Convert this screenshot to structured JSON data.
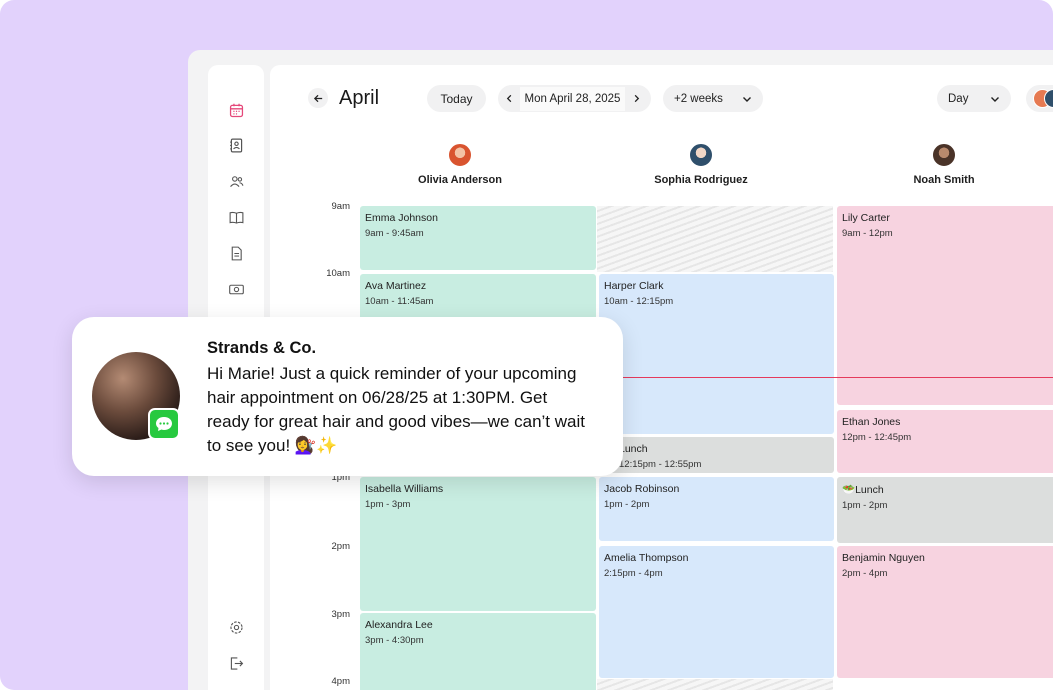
{
  "header": {
    "month": "April",
    "today_label": "Today",
    "date_label": "Mon April 28, 2025",
    "range_label": "+2 weeks",
    "view_label": "Day"
  },
  "sidebar": {
    "icons": [
      "calendar-icon",
      "contacts-icon",
      "clients-icon",
      "book-icon",
      "document-icon",
      "money-icon",
      "analytics-icon"
    ],
    "bottom_icons": [
      "settings-icon",
      "logout-icon"
    ]
  },
  "staff": [
    {
      "name": "Olivia Anderson",
      "avatar_color": "#e67a52"
    },
    {
      "name": "Sophia Rodriguez",
      "avatar_color": "#2f4f6b"
    },
    {
      "name": "Noah Smith",
      "avatar_color": "#6a4a3a"
    }
  ],
  "times": [
    "9am",
    "10am",
    "1pm",
    "2pm",
    "3pm",
    "4pm"
  ],
  "appointments": {
    "col1": [
      {
        "name": "Emma Johnson",
        "time": "9am - 9:45am"
      },
      {
        "name": "Ava Martinez",
        "time": "10am - 11:45am"
      },
      {
        "name": "Isabella Williams",
        "time": "1pm - 3pm"
      },
      {
        "name": "Alexandra Lee",
        "time": "3pm - 4:30pm"
      }
    ],
    "col2": [
      {
        "name": "Harper Clark",
        "time": "10am - 12:15pm"
      },
      {
        "name": "Lunch",
        "time": "12:15pm - 12:55pm"
      },
      {
        "name": "Jacob Robinson",
        "time": "1pm - 2pm"
      },
      {
        "name": "Amelia Thompson",
        "time": "2:15pm - 4pm"
      }
    ],
    "col3": [
      {
        "name": "Lily Carter",
        "time": "9am - 12pm"
      },
      {
        "name": "Ethan Jones",
        "time": "12pm - 12:45pm"
      },
      {
        "name": "🥗Lunch",
        "time": "1pm - 2pm"
      },
      {
        "name": "Benjamin Nguyen",
        "time": "2pm - 4pm"
      }
    ]
  },
  "notification": {
    "title": "Strands & Co.",
    "message": "Hi Marie! Just a quick reminder of your upcoming hair appointment on 06/28/25 at 1:30PM. Get ready for great hair and good vibes—we can’t wait to see you! 💇‍♀️✨"
  },
  "colors": {
    "accent": "#e53a5c",
    "green": "#c8ede1",
    "blue": "#d7e8fb",
    "pink": "#f7d3e0",
    "grey": "#dcdedd",
    "background": "#e2d2fc"
  }
}
